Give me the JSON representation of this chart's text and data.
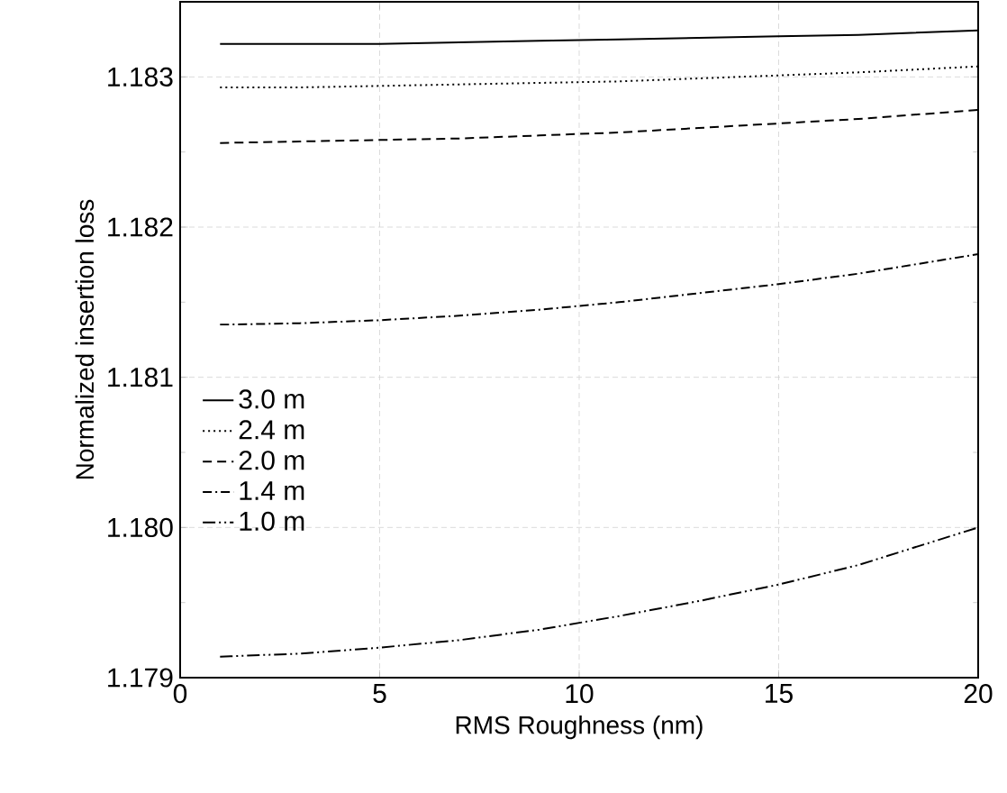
{
  "chart_data": {
    "type": "line",
    "xlabel": "RMS Roughness (nm)",
    "ylabel": "Normalized insertion loss",
    "x": [
      1,
      3,
      5,
      7,
      9,
      11,
      13,
      15,
      17,
      20
    ],
    "series": [
      {
        "name": "3.0 m",
        "color": "#000000",
        "line_style": "solid",
        "values": [
          1.18322,
          1.18322,
          1.18322,
          1.18323,
          1.18324,
          1.18325,
          1.18326,
          1.18327,
          1.18328,
          1.18331
        ]
      },
      {
        "name": "2.4 m",
        "color": "#000000",
        "line_style": "dotted",
        "values": [
          1.18293,
          1.18293,
          1.18294,
          1.18295,
          1.18296,
          1.18297,
          1.18299,
          1.18301,
          1.18303,
          1.18307
        ]
      },
      {
        "name": "2.0 m",
        "color": "#000000",
        "line_style": "dashed",
        "values": [
          1.18256,
          1.18257,
          1.18258,
          1.18259,
          1.18261,
          1.18263,
          1.18266,
          1.18269,
          1.18272,
          1.18278
        ]
      },
      {
        "name": "1.4 m",
        "color": "#000000",
        "line_style": "dashdot",
        "values": [
          1.18135,
          1.18136,
          1.18138,
          1.18141,
          1.18145,
          1.1815,
          1.18156,
          1.18162,
          1.18169,
          1.18182
        ]
      },
      {
        "name": "1.0 m",
        "color": "#000000",
        "line_style": "dashdotdot",
        "values": [
          1.17914,
          1.17916,
          1.1792,
          1.17925,
          1.17932,
          1.17941,
          1.17951,
          1.17962,
          1.17975,
          1.18
        ]
      }
    ],
    "xlim": [
      0,
      20
    ],
    "ylim": [
      1.179,
      1.1835
    ],
    "xticks": [
      0,
      5,
      10,
      15,
      20
    ],
    "yticks": [
      1.179,
      {
        "value": 1.18,
        "label": "1.180"
      },
      1.181,
      1.182,
      1.183
    ],
    "grid": true,
    "legend": "left",
    "marker": "none"
  }
}
